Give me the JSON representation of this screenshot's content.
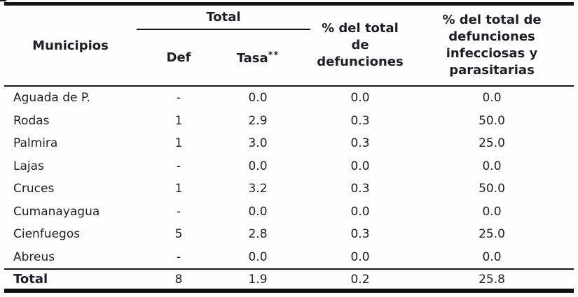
{
  "table": {
    "header": {
      "municipios": "Municipios",
      "total_group": "Total",
      "def": "Def",
      "tasa_label": "Tasa",
      "tasa_sup": "**",
      "pct_total_lines": [
        "% del total",
        "de",
        "defunciones"
      ],
      "pct_total_full": "% del total de defunciones",
      "pct_inf_lines": [
        "% del total de",
        "defunciones",
        "infecciosas y",
        "parasitarias"
      ],
      "pct_inf_full": "% del total de defunciones infecciosas y parasitarias"
    },
    "rows": [
      {
        "name": "Aguada de P.",
        "def": "-",
        "tasa": "0.0",
        "pct_total": "0.0",
        "pct_inf": "0.0"
      },
      {
        "name": "Rodas",
        "def": "1",
        "tasa": "2.9",
        "pct_total": "0.3",
        "pct_inf": "50.0"
      },
      {
        "name": "Palmira",
        "def": "1",
        "tasa": "3.0",
        "pct_total": "0.3",
        "pct_inf": "25.0"
      },
      {
        "name": "Lajas",
        "def": "-",
        "tasa": "0.0",
        "pct_total": "0.0",
        "pct_inf": "0.0"
      },
      {
        "name": "Cruces",
        "def": "1",
        "tasa": "3.2",
        "pct_total": "0.3",
        "pct_inf": "50.0"
      },
      {
        "name": "Cumanayagua",
        "def": "-",
        "tasa": "0.0",
        "pct_total": "0.0",
        "pct_inf": "0.0"
      },
      {
        "name": "Cienfuegos",
        "def": "5",
        "tasa": "2.8",
        "pct_total": "0.3",
        "pct_inf": "25.0"
      },
      {
        "name": "Abreus",
        "def": "-",
        "tasa": "0.0",
        "pct_total": "0.0",
        "pct_inf": "0.0"
      }
    ],
    "total_row": {
      "name": "Total",
      "def": "8",
      "tasa": "1.9",
      "pct_total": "0.2",
      "pct_inf": "25.8"
    }
  },
  "colors": {
    "text": "#1e1e28",
    "rule": "#151515",
    "background": "#fefefe"
  }
}
